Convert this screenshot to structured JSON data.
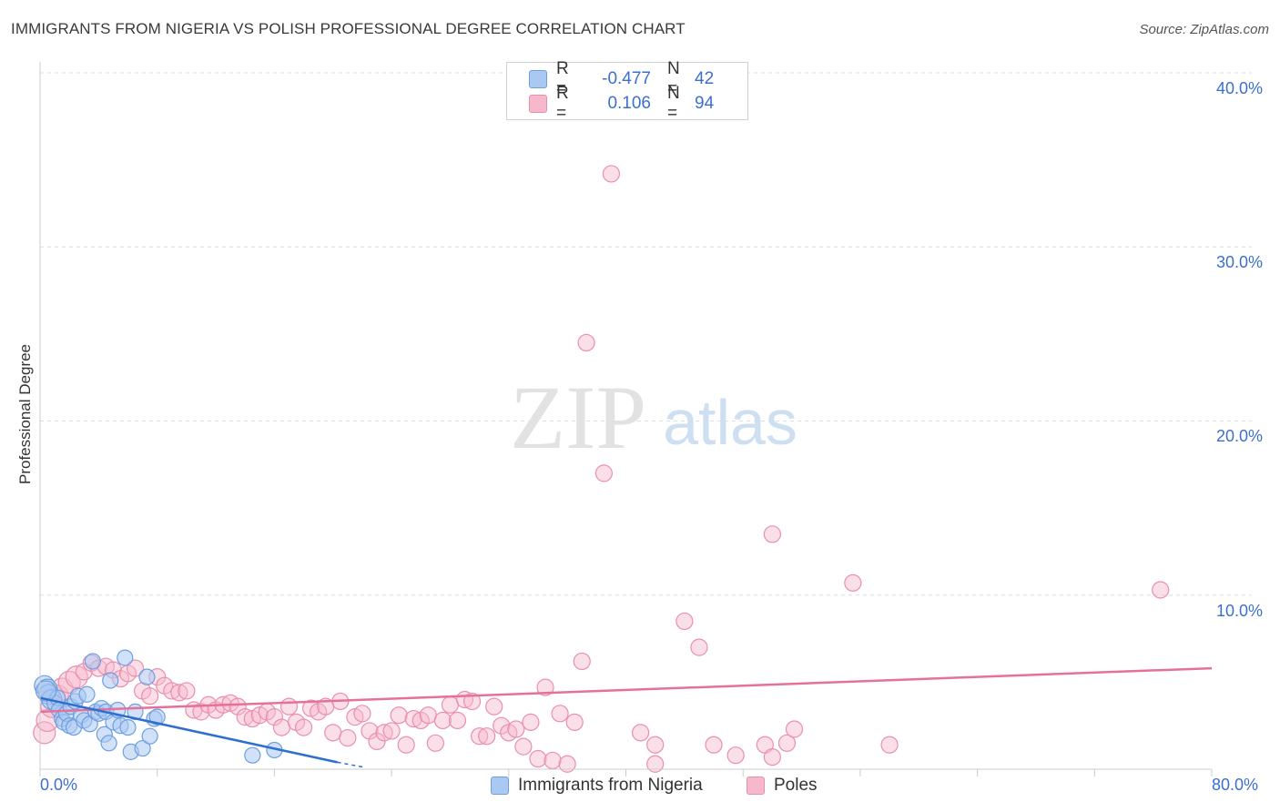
{
  "title": "IMMIGRANTS FROM NIGERIA VS POLISH PROFESSIONAL DEGREE CORRELATION CHART",
  "source": "Source: ZipAtlas.com",
  "watermark": {
    "zip": "ZIP",
    "atlas": "atlas"
  },
  "colors": {
    "blue_fill": "#a9c8f3",
    "blue_stroke": "#6f9fe0",
    "blue_line": "#2f6fcf",
    "pink_fill": "#f7b8cb",
    "pink_stroke": "#ea8fab",
    "pink_line": "#e5719a",
    "tick_text": "#3d6fd1",
    "grid": "#dddddd"
  },
  "legend": {
    "rows": [
      {
        "series": "blue",
        "r_label": "R =",
        "r_value": "-0.477",
        "n_label": "N =",
        "n_value": "42"
      },
      {
        "series": "pink",
        "r_label": "R =",
        "r_value": "0.106",
        "n_label": "N =",
        "n_value": "94"
      }
    ]
  },
  "bottom_legend": {
    "blue": "Immigrants from Nigeria",
    "pink": "Poles"
  },
  "chart_data": {
    "type": "scatter",
    "title": "IMMIGRANTS FROM NIGERIA VS POLISH PROFESSIONAL DEGREE CORRELATION CHART",
    "xlabel": "",
    "ylabel": "Professional Degree",
    "xlim": [
      0,
      80
    ],
    "ylim": [
      0,
      42
    ],
    "x_tick_labels": [
      "0.0%",
      "80.0%"
    ],
    "y_ticks": [
      10,
      20,
      30,
      40
    ],
    "y_tick_labels": [
      "10.0%",
      "20.0%",
      "30.0%",
      "40.0%"
    ],
    "grid": true,
    "series": [
      {
        "name": "Immigrants from Nigeria",
        "color": "#a9c8f3",
        "trend": {
          "x": [
            0,
            20.3
          ],
          "y": [
            4.1,
            0.4
          ],
          "dash_to": [
            22.2,
            0.1
          ]
        },
        "points": [
          [
            0.3,
            4.8
          ],
          [
            0.5,
            4.6
          ],
          [
            0.6,
            4.3
          ],
          [
            0.8,
            4.0
          ],
          [
            1.0,
            3.8
          ],
          [
            1.2,
            4.1
          ],
          [
            1.3,
            3.4
          ],
          [
            1.5,
            2.9
          ],
          [
            1.6,
            2.7
          ],
          [
            1.8,
            3.2
          ],
          [
            2.0,
            2.5
          ],
          [
            2.1,
            3.6
          ],
          [
            2.3,
            2.4
          ],
          [
            2.4,
            3.9
          ],
          [
            2.6,
            4.2
          ],
          [
            2.8,
            3.1
          ],
          [
            3.0,
            2.8
          ],
          [
            3.2,
            4.3
          ],
          [
            3.4,
            2.6
          ],
          [
            3.6,
            6.2
          ],
          [
            3.8,
            3.3
          ],
          [
            4.0,
            3.2
          ],
          [
            4.2,
            3.5
          ],
          [
            4.4,
            2.0
          ],
          [
            4.5,
            3.3
          ],
          [
            4.7,
            1.5
          ],
          [
            4.8,
            5.1
          ],
          [
            5.0,
            2.7
          ],
          [
            5.3,
            3.4
          ],
          [
            5.5,
            2.5
          ],
          [
            5.8,
            6.4
          ],
          [
            6.0,
            2.4
          ],
          [
            6.2,
            1.0
          ],
          [
            6.5,
            3.3
          ],
          [
            7.0,
            1.2
          ],
          [
            7.3,
            5.3
          ],
          [
            7.5,
            1.9
          ],
          [
            7.8,
            2.9
          ],
          [
            8.0,
            3.0
          ],
          [
            14.5,
            0.8
          ],
          [
            16.0,
            1.1
          ],
          [
            0.4,
            4.5
          ]
        ]
      },
      {
        "name": "Poles",
        "color": "#f7b8cb",
        "trend": {
          "x": [
            0,
            80
          ],
          "y": [
            3.3,
            5.8
          ]
        },
        "points": [
          [
            0.3,
            2.1
          ],
          [
            0.5,
            2.8
          ],
          [
            0.8,
            3.6
          ],
          [
            1.2,
            4.2
          ],
          [
            1.5,
            4.6
          ],
          [
            2.0,
            5.0
          ],
          [
            2.5,
            5.3
          ],
          [
            3.0,
            5.6
          ],
          [
            3.5,
            6.1
          ],
          [
            4.0,
            5.8
          ],
          [
            4.5,
            5.9
          ],
          [
            5.0,
            5.7
          ],
          [
            5.5,
            5.2
          ],
          [
            6.0,
            5.5
          ],
          [
            6.5,
            5.8
          ],
          [
            7.0,
            4.5
          ],
          [
            7.5,
            4.2
          ],
          [
            8.0,
            5.3
          ],
          [
            8.5,
            4.8
          ],
          [
            9.0,
            4.5
          ],
          [
            9.5,
            4.4
          ],
          [
            10.0,
            4.5
          ],
          [
            10.5,
            3.4
          ],
          [
            11.0,
            3.3
          ],
          [
            11.5,
            3.7
          ],
          [
            12.0,
            3.4
          ],
          [
            12.5,
            3.7
          ],
          [
            13.0,
            3.8
          ],
          [
            13.5,
            3.6
          ],
          [
            14.0,
            3.0
          ],
          [
            14.5,
            2.9
          ],
          [
            15.0,
            3.1
          ],
          [
            15.5,
            3.3
          ],
          [
            16.0,
            3.0
          ],
          [
            16.5,
            2.4
          ],
          [
            17.0,
            3.6
          ],
          [
            17.5,
            2.7
          ],
          [
            18.0,
            2.4
          ],
          [
            18.5,
            3.5
          ],
          [
            19.0,
            3.3
          ],
          [
            19.5,
            3.6
          ],
          [
            20.0,
            2.1
          ],
          [
            20.5,
            3.9
          ],
          [
            21.0,
            1.8
          ],
          [
            21.5,
            3.0
          ],
          [
            22.0,
            3.2
          ],
          [
            22.5,
            2.2
          ],
          [
            23.0,
            1.6
          ],
          [
            23.5,
            2.1
          ],
          [
            24.0,
            2.2
          ],
          [
            24.5,
            3.1
          ],
          [
            25.0,
            1.4
          ],
          [
            25.5,
            2.9
          ],
          [
            26.0,
            2.8
          ],
          [
            26.5,
            3.1
          ],
          [
            27.0,
            1.5
          ],
          [
            27.5,
            2.8
          ],
          [
            28.0,
            3.7
          ],
          [
            28.5,
            2.8
          ],
          [
            29.0,
            4.0
          ],
          [
            29.5,
            3.9
          ],
          [
            30.0,
            1.9
          ],
          [
            30.5,
            1.9
          ],
          [
            31.0,
            3.6
          ],
          [
            31.5,
            2.5
          ],
          [
            32.0,
            2.1
          ],
          [
            32.5,
            2.3
          ],
          [
            33.0,
            1.3
          ],
          [
            33.5,
            2.7
          ],
          [
            34.0,
            0.6
          ],
          [
            34.5,
            4.7
          ],
          [
            35.0,
            0.5
          ],
          [
            35.5,
            3.2
          ],
          [
            36.0,
            0.3
          ],
          [
            36.5,
            2.7
          ],
          [
            37.0,
            6.2
          ],
          [
            38.5,
            17.0
          ],
          [
            39.0,
            34.2
          ],
          [
            37.3,
            24.5
          ],
          [
            41.0,
            2.1
          ],
          [
            42.0,
            1.4
          ],
          [
            42.0,
            0.3
          ],
          [
            44.0,
            8.5
          ],
          [
            45.0,
            7.0
          ],
          [
            46.0,
            1.4
          ],
          [
            47.5,
            0.8
          ],
          [
            49.5,
            1.4
          ],
          [
            50.0,
            13.5
          ],
          [
            50.0,
            0.7
          ],
          [
            51.0,
            1.5
          ],
          [
            51.5,
            2.3
          ],
          [
            55.5,
            10.7
          ],
          [
            58.0,
            1.4
          ],
          [
            76.5,
            10.3
          ]
        ]
      }
    ]
  }
}
